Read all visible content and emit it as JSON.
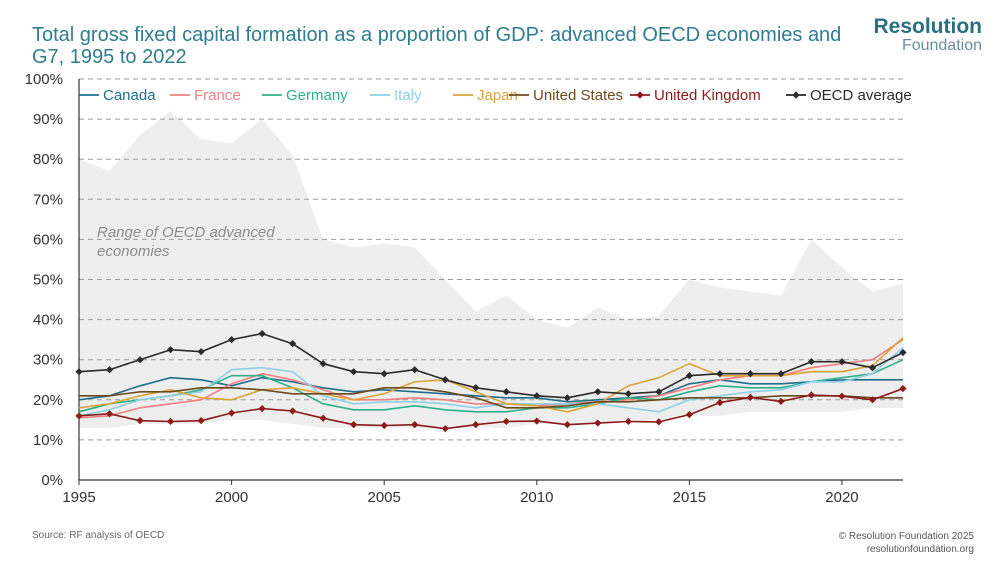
{
  "header": {
    "title": "Total gross fixed capital formation as a proportion of GDP: advanced OECD economies and G7, 1995 to 2022",
    "logo_line1": "Resolution",
    "logo_line2": "Foundation"
  },
  "footer": {
    "source": "Source: RF analysis of OECD",
    "copyright": "© Resolution Foundation 2025",
    "website": "resolutionfoundation.org"
  },
  "colors": {
    "Canada": "#1f6f8b",
    "France": "#f08080",
    "Germany": "#2fb08a",
    "Italy": "#8fd0e6",
    "Japan": "#dba33a",
    "United States": "#6b4a1f",
    "United Kingdom": "#8b1a1a",
    "OECD average": "#2b2b2b",
    "range": "#eeeeee",
    "grid": "#9a9a9a",
    "axis": "#333333"
  },
  "chart_data": {
    "type": "line",
    "title": "Total gross fixed capital formation as a proportion of GDP: advanced OECD economies and G7, 1995 to 2022",
    "xlabel": "",
    "ylabel": "",
    "x": [
      1995,
      1996,
      1997,
      1998,
      1999,
      2000,
      2001,
      2002,
      2003,
      2004,
      2005,
      2006,
      2007,
      2008,
      2009,
      2010,
      2011,
      2012,
      2013,
      2014,
      2015,
      2016,
      2017,
      2018,
      2019,
      2020,
      2021,
      2022
    ],
    "xticks": [
      "1995",
      "2000",
      "2005",
      "2010",
      "2015",
      "2020"
    ],
    "xlim": [
      1995,
      2022
    ],
    "yticks": [
      "0%",
      "10%",
      "20%",
      "30%",
      "40%",
      "50%",
      "60%",
      "70%",
      "80%",
      "90%",
      "100%"
    ],
    "ylim": [
      0,
      100
    ],
    "grid": "horizontal dashed",
    "range": {
      "label": "Range of OECD advanced economies",
      "upper": [
        80,
        77,
        86,
        92,
        85,
        84,
        90,
        81,
        60,
        58,
        59,
        58,
        50,
        42,
        46,
        40,
        38,
        43,
        40,
        41,
        50,
        48,
        47,
        46,
        60,
        53,
        47,
        49
      ],
      "lower": [
        13,
        13,
        14,
        14,
        14,
        15,
        15,
        14,
        13,
        13,
        13,
        13,
        13,
        13,
        13,
        14,
        14,
        14,
        15,
        15,
        16,
        16,
        17,
        17,
        17,
        17,
        18,
        18
      ]
    },
    "series": [
      {
        "name": "Canada",
        "values": [
          20,
          21,
          23.5,
          25.5,
          25,
          23.5,
          25.5,
          24.5,
          23,
          22,
          22.5,
          22,
          21.5,
          21,
          20.5,
          20.5,
          19.5,
          20,
          20.5,
          21,
          24,
          25,
          24,
          24,
          24.5,
          25,
          25,
          25
        ]
      },
      {
        "name": "France",
        "values": [
          15.5,
          16,
          18,
          19,
          20,
          24,
          26.5,
          25,
          22.5,
          20,
          20,
          20.5,
          20,
          19,
          19,
          18.5,
          19,
          19.5,
          20,
          21,
          23,
          25,
          26,
          26,
          28,
          29,
          30,
          35
        ]
      },
      {
        "name": "Germany",
        "values": [
          17,
          19,
          20,
          21,
          22.5,
          26,
          26,
          23,
          19,
          17.5,
          17.5,
          18.5,
          17.5,
          17,
          17,
          18,
          18,
          19,
          20.5,
          20,
          22,
          23.5,
          23,
          23,
          24.5,
          25.5,
          26.5,
          30
        ]
      },
      {
        "name": "Italy",
        "values": [
          16,
          17.5,
          20,
          21,
          22,
          27.5,
          28,
          27,
          21,
          19,
          19.5,
          19.5,
          19,
          18,
          19,
          19,
          19,
          19,
          18,
          17,
          20,
          21,
          22,
          22.5,
          24.5,
          24.5,
          26.5,
          33
        ]
      },
      {
        "name": "Japan",
        "values": [
          18,
          19,
          21,
          22.5,
          20.5,
          20,
          22.5,
          23,
          21.5,
          20,
          21.5,
          24.5,
          25,
          22,
          19,
          18.5,
          17,
          19,
          23.5,
          25.5,
          29,
          26,
          26,
          26,
          27,
          27,
          28.5,
          35.5
        ]
      },
      {
        "name": "United States",
        "values": [
          21,
          21,
          22,
          22,
          23,
          23,
          22.5,
          21.5,
          21.5,
          21.5,
          23,
          23,
          22,
          20.5,
          18,
          18,
          18.5,
          19.5,
          19.5,
          20,
          20.5,
          20.5,
          20.5,
          21,
          21,
          21,
          20.5,
          20.5
        ]
      },
      {
        "name": "United Kingdom",
        "values": [
          16,
          16.5,
          14.8,
          14.6,
          14.8,
          16.7,
          17.8,
          17.2,
          15.4,
          13.8,
          13.6,
          13.8,
          12.8,
          13.8,
          14.6,
          14.7,
          13.8,
          14.2,
          14.6,
          14.5,
          16.3,
          19.3,
          20.6,
          19.6,
          21.2,
          20.9,
          20,
          22.8
        ]
      },
      {
        "name": "OECD average",
        "values": [
          27,
          27.5,
          30,
          32.5,
          32,
          35,
          36.5,
          34,
          29,
          27,
          26.5,
          27.5,
          25,
          23,
          22,
          21,
          20.5,
          22,
          21.5,
          22,
          26,
          26.5,
          26.5,
          26.5,
          29.5,
          29.5,
          28,
          31.8
        ]
      }
    ]
  }
}
